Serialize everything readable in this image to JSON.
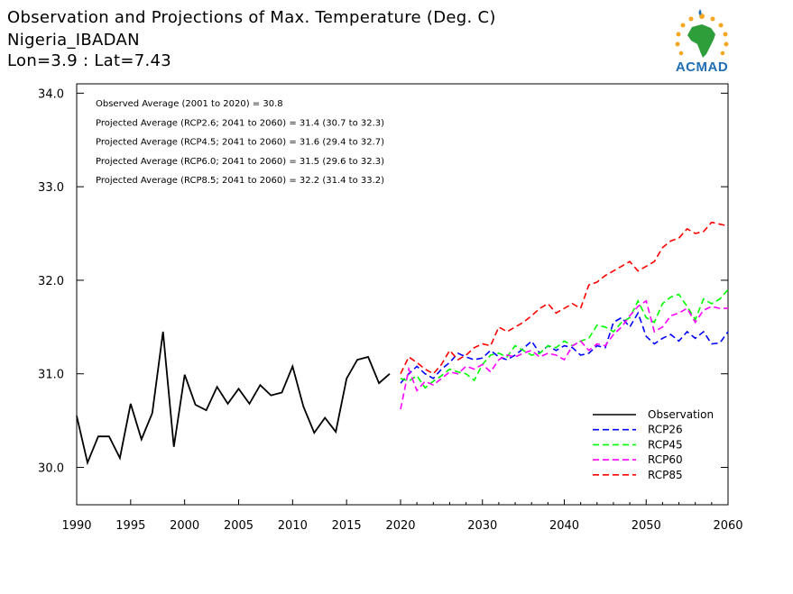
{
  "header": {
    "title": "Observation and Projections of Max. Temperature (Deg. C)",
    "location": "Nigeria_IBADAN",
    "coords": "Lon=3.9 : Lat=7.43"
  },
  "logo": {
    "text": "ACMAD",
    "icon": "africa-sun-logo"
  },
  "annotations": [
    "Observed Average (2001 to 2020) = 30.8",
    "Projected Average (RCP2.6; 2041 to 2060) = 31.4 (30.7 to 32.3)",
    "Projected Average (RCP4.5; 2041 to 2060) = 31.6 (29.4 to 32.7)",
    "Projected Average (RCP6.0; 2041 to 2060) = 31.5 (29.6 to 32.3)",
    "Projected Average (RCP8.5; 2041 to 2060) = 32.2 (31.4 to 33.2)"
  ],
  "chart_data": {
    "type": "line",
    "xlim": [
      1990,
      2060
    ],
    "ylim": [
      29.6,
      34.1
    ],
    "yticks": [
      30.0,
      31.0,
      32.0,
      33.0,
      34.0
    ],
    "ytick_labels": [
      "30.0",
      "31.0",
      "32.0",
      "33.0",
      "34.0"
    ],
    "xticks_obs": [
      1990,
      1995,
      2000,
      2005,
      2010,
      2015,
      2020
    ],
    "xticks_proj": [
      2030,
      2040,
      2050,
      2060
    ],
    "legend_position": "bottom-right",
    "series": [
      {
        "name": "Observation",
        "color": "#000000",
        "dashed": false,
        "x": [
          1990,
          1991,
          1992,
          1993,
          1994,
          1995,
          1996,
          1997,
          1998,
          1999,
          2000,
          2001,
          2002,
          2003,
          2004,
          2005,
          2006,
          2007,
          2008,
          2009,
          2010,
          2011,
          2012,
          2013,
          2014,
          2015,
          2016,
          2017,
          2018,
          2019
        ],
        "values": [
          30.55,
          30.05,
          30.33,
          30.33,
          30.1,
          30.68,
          30.3,
          30.58,
          31.45,
          30.22,
          30.99,
          30.67,
          30.61,
          30.86,
          30.68,
          30.84,
          30.68,
          30.88,
          30.77,
          30.8,
          31.08,
          30.65,
          30.37,
          30.53,
          30.38,
          30.95,
          31.15,
          31.18,
          30.9,
          31.0
        ]
      },
      {
        "name": "RCP26",
        "color": "#0000ff",
        "dashed": true,
        "x": [
          2020,
          2021,
          2022,
          2023,
          2024,
          2025,
          2026,
          2027,
          2028,
          2029,
          2030,
          2031,
          2032,
          2033,
          2034,
          2035,
          2036,
          2037,
          2038,
          2039,
          2040,
          2041,
          2042,
          2043,
          2044,
          2045,
          2046,
          2047,
          2048,
          2049,
          2050,
          2051,
          2052,
          2053,
          2054,
          2055,
          2056,
          2057,
          2058,
          2059,
          2060
        ],
        "values": [
          30.9,
          31.0,
          31.08,
          31.0,
          30.95,
          31.05,
          31.12,
          31.22,
          31.18,
          31.15,
          31.17,
          31.25,
          31.18,
          31.15,
          31.2,
          31.27,
          31.35,
          31.22,
          31.3,
          31.25,
          31.3,
          31.28,
          31.2,
          31.22,
          31.3,
          31.28,
          31.55,
          31.6,
          31.5,
          31.65,
          31.4,
          31.32,
          31.38,
          31.42,
          31.35,
          31.45,
          31.38,
          31.45,
          31.32,
          31.33,
          31.45
        ]
      },
      {
        "name": "RCP45",
        "color": "#00ff00",
        "dashed": true,
        "x": [
          2020,
          2021,
          2022,
          2023,
          2024,
          2025,
          2026,
          2027,
          2028,
          2029,
          2030,
          2031,
          2032,
          2033,
          2034,
          2035,
          2036,
          2037,
          2038,
          2039,
          2040,
          2041,
          2042,
          2043,
          2044,
          2045,
          2046,
          2047,
          2048,
          2049,
          2050,
          2051,
          2052,
          2053,
          2054,
          2055,
          2056,
          2057,
          2058,
          2059,
          2060
        ],
        "values": [
          30.95,
          30.92,
          30.98,
          30.85,
          30.92,
          30.98,
          31.05,
          31.02,
          31.0,
          30.93,
          31.1,
          31.2,
          31.22,
          31.18,
          31.3,
          31.25,
          31.2,
          31.22,
          31.3,
          31.28,
          31.35,
          31.3,
          31.35,
          31.38,
          31.52,
          31.5,
          31.45,
          31.55,
          31.6,
          31.78,
          31.6,
          31.55,
          31.75,
          31.82,
          31.85,
          31.72,
          31.58,
          31.8,
          31.75,
          31.8,
          31.9
        ]
      },
      {
        "name": "RCP60",
        "color": "#ff00ff",
        "dashed": true,
        "x": [
          2020,
          2021,
          2022,
          2023,
          2024,
          2025,
          2026,
          2027,
          2028,
          2029,
          2030,
          2031,
          2032,
          2033,
          2034,
          2035,
          2036,
          2037,
          2038,
          2039,
          2040,
          2041,
          2042,
          2043,
          2044,
          2045,
          2046,
          2047,
          2048,
          2049,
          2050,
          2051,
          2052,
          2053,
          2054,
          2055,
          2056,
          2057,
          2058,
          2059,
          2060
        ],
        "values": [
          30.62,
          31.05,
          30.82,
          30.92,
          30.88,
          30.95,
          31.02,
          31.0,
          31.08,
          31.05,
          31.1,
          31.02,
          31.15,
          31.2,
          31.18,
          31.22,
          31.25,
          31.18,
          31.22,
          31.2,
          31.15,
          31.3,
          31.35,
          31.25,
          31.32,
          31.3,
          31.42,
          31.5,
          31.62,
          31.72,
          31.78,
          31.45,
          31.5,
          31.62,
          31.65,
          31.7,
          31.55,
          31.68,
          31.72,
          31.7,
          31.7
        ]
      },
      {
        "name": "RCP85",
        "color": "#ff0000",
        "dashed": true,
        "x": [
          2020,
          2021,
          2022,
          2023,
          2024,
          2025,
          2026,
          2027,
          2028,
          2029,
          2030,
          2031,
          2032,
          2033,
          2034,
          2035,
          2036,
          2037,
          2038,
          2039,
          2040,
          2041,
          2042,
          2043,
          2044,
          2045,
          2046,
          2047,
          2048,
          2049,
          2050,
          2051,
          2052,
          2053,
          2054,
          2055,
          2056,
          2057,
          2058,
          2059,
          2060
        ],
        "values": [
          31.0,
          31.18,
          31.12,
          31.05,
          31.0,
          31.1,
          31.25,
          31.15,
          31.2,
          31.28,
          31.32,
          31.3,
          31.5,
          31.45,
          31.5,
          31.55,
          31.62,
          31.7,
          31.75,
          31.65,
          31.7,
          31.75,
          31.7,
          31.95,
          31.98,
          32.05,
          32.1,
          32.15,
          32.2,
          32.1,
          32.15,
          32.2,
          32.35,
          32.42,
          32.45,
          32.55,
          32.5,
          32.52,
          32.62,
          32.6,
          32.58
        ]
      }
    ]
  }
}
